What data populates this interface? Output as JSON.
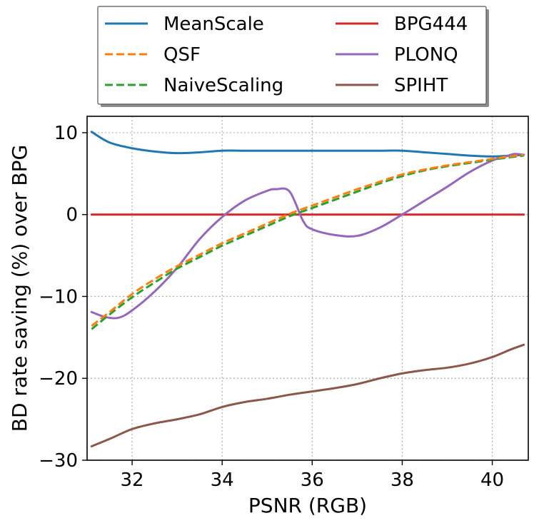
{
  "chart_data": {
    "type": "line",
    "title": "",
    "xlabel": "PSNR (RGB)",
    "ylabel": "BD rate saving (%) over BPG",
    "xlim": [
      31.0,
      40.8
    ],
    "ylim": [
      -30,
      12
    ],
    "xticks": [
      32,
      34,
      36,
      38,
      40
    ],
    "yticks": [
      -30,
      -20,
      -10,
      0,
      10
    ],
    "ytick_labels": [
      "−30",
      "−20",
      "−10",
      "0",
      "10"
    ],
    "grid": true,
    "legend_position": "top-center-above",
    "series": [
      {
        "name": "MeanScale",
        "color": "#1f77b4",
        "dash": "solid",
        "x": [
          31.1,
          31.5,
          32.0,
          32.5,
          33.0,
          33.5,
          34.0,
          34.5,
          35.0,
          35.5,
          36.0,
          36.5,
          37.0,
          37.5,
          38.0,
          38.5,
          39.0,
          39.5,
          40.0,
          40.4,
          40.7
        ],
        "y": [
          10.1,
          8.8,
          8.1,
          7.7,
          7.5,
          7.6,
          7.8,
          7.8,
          7.8,
          7.8,
          7.8,
          7.8,
          7.8,
          7.8,
          7.8,
          7.6,
          7.4,
          7.2,
          7.1,
          7.2,
          7.3
        ]
      },
      {
        "name": "QSF",
        "color": "#ff7f0e",
        "dash": "dashed",
        "x": [
          31.1,
          31.5,
          32.0,
          32.5,
          33.0,
          33.5,
          34.0,
          34.5,
          35.0,
          35.5,
          36.0,
          36.5,
          37.0,
          37.5,
          38.0,
          38.5,
          39.0,
          39.5,
          40.0,
          40.4,
          40.7
        ],
        "y": [
          -13.6,
          -11.9,
          -9.7,
          -7.9,
          -6.3,
          -4.9,
          -3.5,
          -2.3,
          -1.1,
          0.1,
          1.1,
          2.1,
          3.1,
          4.0,
          4.9,
          5.5,
          6.0,
          6.4,
          6.8,
          7.1,
          7.3
        ]
      },
      {
        "name": "NaiveScaling",
        "color": "#2ca02c",
        "dash": "dashed",
        "x": [
          31.1,
          31.5,
          32.0,
          32.5,
          33.0,
          33.5,
          34.0,
          34.5,
          35.0,
          35.5,
          36.0,
          36.5,
          37.0,
          37.5,
          38.0,
          38.5,
          39.0,
          39.5,
          40.0,
          40.4,
          40.7
        ],
        "y": [
          -14.0,
          -12.2,
          -10.1,
          -8.3,
          -6.6,
          -5.2,
          -3.8,
          -2.6,
          -1.4,
          -0.2,
          0.8,
          1.8,
          2.8,
          3.8,
          4.7,
          5.4,
          5.9,
          6.3,
          6.7,
          7.0,
          7.2
        ]
      },
      {
        "name": "BPG444",
        "color": "#d62728",
        "dash": "solid",
        "x": [
          31.1,
          40.7
        ],
        "y": [
          0,
          0
        ]
      },
      {
        "name": "PLONQ",
        "color": "#9467bd",
        "dash": "solid",
        "x": [
          31.1,
          31.4,
          31.7,
          32.0,
          32.5,
          33.0,
          33.5,
          34.0,
          34.5,
          35.0,
          35.2,
          35.5,
          35.8,
          36.0,
          36.5,
          37.0,
          37.5,
          38.0,
          38.5,
          39.0,
          39.5,
          40.0,
          40.3,
          40.5,
          40.7
        ],
        "y": [
          -11.9,
          -12.5,
          -12.6,
          -11.7,
          -9.4,
          -6.5,
          -3.0,
          -0.3,
          1.7,
          2.9,
          3.1,
          2.8,
          -0.8,
          -1.8,
          -2.5,
          -2.6,
          -1.6,
          0.0,
          1.7,
          3.4,
          5.2,
          6.6,
          7.1,
          7.4,
          7.3
        ]
      },
      {
        "name": "SPIHT",
        "color": "#8c564b",
        "dash": "solid",
        "x": [
          31.1,
          31.5,
          32.0,
          32.5,
          33.0,
          33.5,
          34.0,
          34.5,
          35.0,
          35.5,
          36.0,
          36.5,
          37.0,
          37.5,
          38.0,
          38.5,
          39.0,
          39.5,
          40.0,
          40.4,
          40.7
        ],
        "y": [
          -28.3,
          -27.4,
          -26.2,
          -25.5,
          -25.0,
          -24.4,
          -23.5,
          -22.9,
          -22.5,
          -22.0,
          -21.6,
          -21.2,
          -20.7,
          -20.0,
          -19.4,
          -19.0,
          -18.7,
          -18.2,
          -17.4,
          -16.5,
          -15.9
        ]
      }
    ]
  }
}
